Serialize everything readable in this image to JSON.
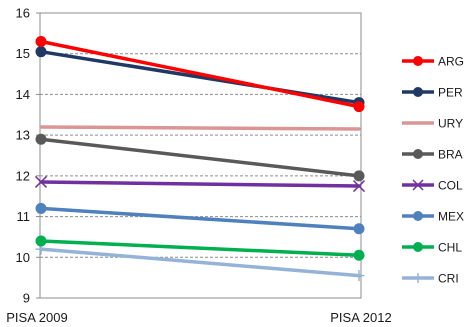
{
  "chart_data": {
    "type": "line",
    "title": "",
    "xlabel": "",
    "ylabel": "",
    "categories": [
      "PISA 2009",
      "PISA 2012"
    ],
    "ylim": [
      9,
      16
    ],
    "yticks": [
      9,
      10,
      11,
      12,
      13,
      14,
      15,
      16
    ],
    "grid": "horizontal dashed",
    "legend_position": "right",
    "series": [
      {
        "name": "ARG",
        "values": [
          15.3,
          13.7
        ],
        "color": "#ff0000",
        "marker": "circle"
      },
      {
        "name": "PER",
        "values": [
          15.05,
          13.8
        ],
        "color": "#1f3864",
        "marker": "circle"
      },
      {
        "name": "URY",
        "values": [
          13.2,
          13.15
        ],
        "color": "#d99694",
        "marker": "none"
      },
      {
        "name": "BRA",
        "values": [
          12.9,
          12.0
        ],
        "color": "#595959",
        "marker": "circle"
      },
      {
        "name": "COL",
        "values": [
          11.85,
          11.75
        ],
        "color": "#7030a0",
        "marker": "x"
      },
      {
        "name": "MEX",
        "values": [
          11.2,
          10.7
        ],
        "color": "#4f81bd",
        "marker": "circle"
      },
      {
        "name": "CHL",
        "values": [
          10.4,
          10.05
        ],
        "color": "#00b050",
        "marker": "circle"
      },
      {
        "name": "CRI",
        "values": [
          10.2,
          9.55
        ],
        "color": "#95b3d7",
        "marker": "plus"
      }
    ]
  }
}
